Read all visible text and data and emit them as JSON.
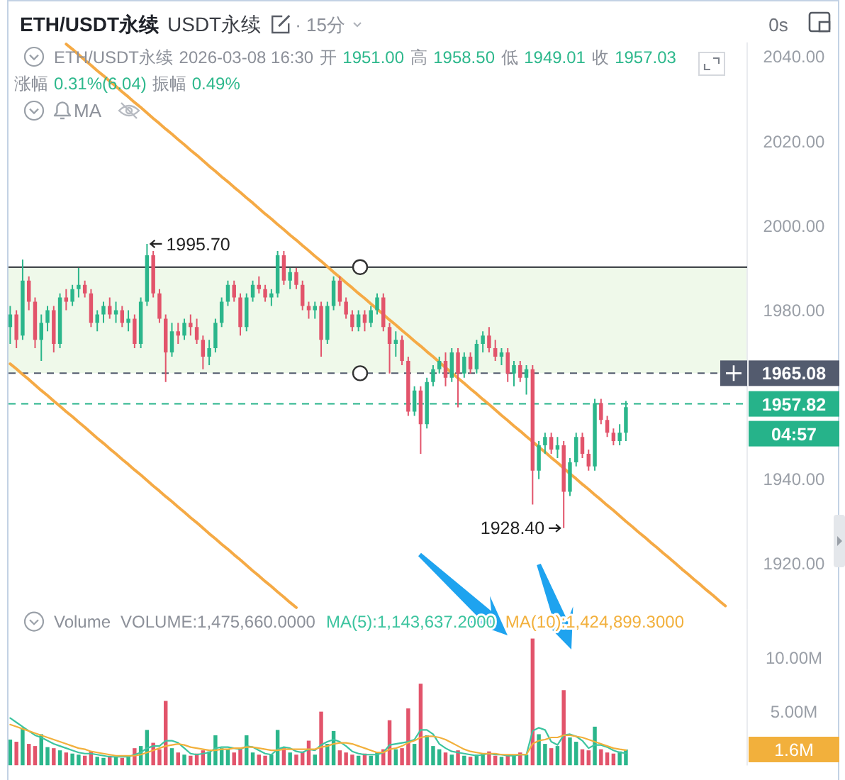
{
  "chart_data": [
    {
      "type": "candlestick",
      "title": "ETH/USDT永续",
      "subtitle": "USDT永续",
      "categories": [
        null,
        null,
        null,
        null,
        null,
        null,
        null,
        null,
        null,
        null,
        null,
        null,
        null,
        null,
        null,
        null,
        null,
        null,
        null,
        null,
        null,
        null,
        null,
        null,
        null,
        null,
        null,
        null,
        null,
        null,
        null,
        null,
        null,
        null,
        null,
        null,
        null,
        null,
        null,
        null,
        null,
        null,
        null,
        null,
        null,
        null,
        null,
        null,
        null,
        null,
        null,
        null,
        null,
        null,
        null,
        null,
        null,
        null,
        null,
        null,
        null,
        null,
        null,
        null,
        null,
        null,
        null,
        null,
        null,
        null,
        null,
        null,
        null,
        null,
        null,
        null,
        null,
        null,
        null,
        null,
        null,
        null,
        null,
        null,
        null,
        null,
        null,
        null,
        null,
        null,
        null,
        null,
        null,
        null,
        null,
        null,
        null,
        null,
        null,
        null,
        null,
        null,
        null,
        null,
        null,
        null,
        null,
        null,
        null,
        null,
        null,
        null,
        null,
        null,
        null,
        null,
        null,
        null,
        null
      ],
      "ohlc": [
        [
          1976,
          1981,
          1972,
          1979
        ],
        [
          1979,
          1980,
          1971,
          1973
        ],
        [
          1974,
          1992,
          1973,
          1987
        ],
        [
          1987,
          1988,
          1980,
          1982
        ],
        [
          1982,
          1983,
          1971,
          1973
        ],
        [
          1973,
          1979,
          1968,
          1977
        ],
        [
          1977,
          1981,
          1975,
          1980
        ],
        [
          1980,
          1981,
          1970,
          1972
        ],
        [
          1972,
          1984,
          1971,
          1983
        ],
        [
          1983,
          1985,
          1980,
          1982
        ],
        [
          1982,
          1986,
          1981,
          1985
        ],
        [
          1985,
          1990,
          1983,
          1986
        ],
        [
          1986,
          1987,
          1983,
          1984
        ],
        [
          1984,
          1985,
          1976,
          1977
        ],
        [
          1977,
          1980,
          1975,
          1979
        ],
        [
          1979,
          1982,
          1977,
          1981
        ],
        [
          1981,
          1983,
          1978,
          1979
        ],
        [
          1979,
          1982,
          1977,
          1980
        ],
        [
          1980,
          1981,
          1976,
          1977
        ],
        [
          1977,
          1980,
          1975,
          1978
        ],
        [
          1978,
          1979,
          1971,
          1972
        ],
        [
          1972,
          1983,
          1971,
          1982
        ],
        [
          1982,
          1995.7,
          1981,
          1993
        ],
        [
          1993,
          1994,
          1983,
          1984
        ],
        [
          1984,
          1985,
          1977,
          1978
        ],
        [
          1978,
          1979,
          1963,
          1970
        ],
        [
          1970,
          1977,
          1969,
          1975
        ],
        [
          1975,
          1977,
          1972,
          1974
        ],
        [
          1974,
          1978,
          1973,
          1977
        ],
        [
          1977,
          1979,
          1974,
          1976
        ],
        [
          1976,
          1978,
          1972,
          1973
        ],
        [
          1973,
          1974,
          1966,
          1969
        ],
        [
          1969,
          1973,
          1967,
          1971
        ],
        [
          1971,
          1978,
          1970,
          1977
        ],
        [
          1977,
          1983,
          1976,
          1982
        ],
        [
          1982,
          1987,
          1981,
          1986
        ],
        [
          1986,
          1987,
          1982,
          1983
        ],
        [
          1983,
          1984,
          1974,
          1976
        ],
        [
          1976,
          1984,
          1975,
          1983
        ],
        [
          1983,
          1987,
          1982,
          1986
        ],
        [
          1986,
          1988,
          1984,
          1985
        ],
        [
          1985,
          1986,
          1982,
          1983
        ],
        [
          1983,
          1985,
          1981,
          1984
        ],
        [
          1984,
          1994,
          1983,
          1993
        ],
        [
          1993,
          1994,
          1986,
          1987
        ],
        [
          1987,
          1990,
          1985,
          1989
        ],
        [
          1989,
          1990,
          1985,
          1986
        ],
        [
          1986,
          1987,
          1980,
          1981
        ],
        [
          1981,
          1982,
          1978,
          1980
        ],
        [
          1980,
          1982,
          1978,
          1981
        ],
        [
          1981,
          1982,
          1969,
          1973
        ],
        [
          1973,
          1982,
          1972,
          1981
        ],
        [
          1981,
          1988,
          1980,
          1987
        ],
        [
          1987,
          1988,
          1981,
          1982
        ],
        [
          1982,
          1983,
          1978,
          1979
        ],
        [
          1979,
          1980,
          1975,
          1976
        ],
        [
          1976,
          1980,
          1975,
          1979
        ],
        [
          1979,
          1980,
          1975,
          1977
        ],
        [
          1977,
          1981,
          1976,
          1980
        ],
        [
          1980,
          1984,
          1979,
          1983
        ],
        [
          1983,
          1984,
          1975,
          1976
        ],
        [
          1976,
          1977,
          1965,
          1972
        ],
        [
          1972,
          1975,
          1969,
          1973
        ],
        [
          1973,
          1974,
          1967,
          1968
        ],
        [
          1968,
          1969,
          1955,
          1956
        ],
        [
          1956,
          1962,
          1955,
          1961
        ],
        [
          1961,
          1962,
          1946,
          1953
        ],
        [
          1953,
          1964,
          1952,
          1963
        ],
        [
          1963,
          1967,
          1962,
          1966
        ],
        [
          1966,
          1969,
          1965,
          1968
        ],
        [
          1968,
          1970,
          1962,
          1964
        ],
        [
          1964,
          1971,
          1963,
          1970
        ],
        [
          1970,
          1971,
          1957,
          1965
        ],
        [
          1965,
          1970,
          1964,
          1969
        ],
        [
          1969,
          1970,
          1965,
          1966
        ],
        [
          1966,
          1973,
          1965,
          1972
        ],
        [
          1972,
          1975,
          1970,
          1974
        ],
        [
          1974,
          1976,
          1970,
          1971
        ],
        [
          1971,
          1973,
          1968,
          1969
        ],
        [
          1969,
          1971,
          1967,
          1970
        ],
        [
          1970,
          1971,
          1963,
          1965
        ],
        [
          1965,
          1968,
          1962,
          1967
        ],
        [
          1967,
          1968,
          1963,
          1964
        ],
        [
          1964,
          1967,
          1960,
          1966
        ],
        [
          1966,
          1967,
          1934,
          1942
        ],
        [
          1942,
          1949,
          1940,
          1948
        ],
        [
          1948,
          1951,
          1946,
          1950
        ],
        [
          1950,
          1951,
          1946,
          1947
        ],
        [
          1947,
          1950,
          1945,
          1948
        ],
        [
          1948,
          1949,
          1928.4,
          1937
        ],
        [
          1937,
          1945,
          1936,
          1944
        ],
        [
          1944,
          1951,
          1943,
          1950
        ],
        [
          1950,
          1951,
          1945,
          1946
        ],
        [
          1946,
          1947,
          1942,
          1943
        ],
        [
          1943,
          1959,
          1942,
          1958
        ],
        [
          1958,
          1959,
          1953,
          1954
        ],
        [
          1954,
          1955,
          1950,
          1951
        ],
        [
          1951,
          1952,
          1948,
          1949
        ],
        [
          1949,
          1953,
          1948,
          1951
        ],
        [
          1951,
          1958.5,
          1949.01,
          1957.03
        ],
        null,
        null,
        null,
        null,
        null,
        null,
        null,
        null,
        null,
        null,
        null,
        null,
        null,
        null,
        null,
        null,
        null,
        null,
        null
      ],
      "colors": [
        "#2bb68b",
        "#e2546b",
        "#2bb68b",
        "#e2546b",
        "#e2546b",
        "#2bb68b",
        "#2bb68b",
        "#e2546b",
        "#2bb68b",
        "#e2546b",
        "#2bb68b",
        "#2bb68b",
        "#e2546b",
        "#e2546b",
        "#2bb68b",
        "#2bb68b",
        "#e2546b",
        "#2bb68b",
        "#e2546b",
        "#2bb68b",
        "#e2546b",
        "#2bb68b",
        "#2bb68b",
        "#e2546b",
        "#e2546b",
        "#e2546b",
        "#2bb68b",
        "#e2546b",
        "#2bb68b",
        "#e2546b",
        "#e2546b",
        "#e2546b",
        "#2bb68b",
        "#2bb68b",
        "#2bb68b",
        "#2bb68b",
        "#e2546b",
        "#e2546b",
        "#2bb68b",
        "#2bb68b",
        "#e2546b",
        "#e2546b",
        "#2bb68b",
        "#2bb68b",
        "#e2546b",
        "#2bb68b",
        "#e2546b",
        "#e2546b",
        "#e2546b",
        "#2bb68b",
        "#e2546b",
        "#2bb68b",
        "#2bb68b",
        "#e2546b",
        "#e2546b",
        "#e2546b",
        "#2bb68b",
        "#e2546b",
        "#2bb68b",
        "#2bb68b",
        "#e2546b",
        "#e2546b",
        "#2bb68b",
        "#e2546b",
        "#e2546b",
        "#2bb68b",
        "#e2546b",
        "#2bb68b",
        "#2bb68b",
        "#2bb68b",
        "#e2546b",
        "#2bb68b",
        "#e2546b",
        "#2bb68b",
        "#e2546b",
        "#2bb68b",
        "#2bb68b",
        "#e2546b",
        "#e2546b",
        "#2bb68b",
        "#e2546b",
        "#2bb68b",
        "#e2546b",
        "#2bb68b",
        "#e2546b",
        "#2bb68b",
        "#2bb68b",
        "#e2546b",
        "#2bb68b",
        "#e2546b",
        "#2bb68b",
        "#2bb68b",
        "#e2546b",
        "#e2546b",
        "#2bb68b",
        "#e2546b",
        "#e2546b",
        "#e2546b",
        "#2bb68b",
        "#2bb68b",
        null,
        null,
        null,
        null,
        null,
        null,
        null,
        null,
        null,
        null,
        null,
        null,
        null,
        null,
        null,
        null,
        null,
        null,
        null
      ],
      "series": [
        {
          "type": "line",
          "color": "#f5aa45",
          "values": [
            null,
            null,
            null,
            null,
            null,
            null,
            null,
            null,
            null,
            2043.0,
            2041.8,
            2040.5,
            2039.2,
            2038.0,
            2036.7,
            2035.5,
            2034.2,
            2033.0,
            2031.7,
            2030.5,
            2029.2,
            2028.0,
            2026.7,
            2025.4,
            2024.2,
            2022.9,
            2021.7,
            2020.4,
            2019.2,
            2017.9,
            2016.7,
            2015.4,
            2014.1,
            2012.9,
            2011.6,
            2010.4,
            2009.1,
            2007.9,
            2006.6,
            2005.4,
            2004.1,
            2002.8,
            2001.6,
            2000.3,
            1999.1,
            1997.8,
            1996.6,
            1995.3,
            1994.1,
            1992.8,
            1991.6,
            1990.3,
            1989.0,
            1987.8,
            1986.5,
            1985.3,
            1984.0,
            1982.8,
            1981.5,
            1980.3,
            1979.0,
            1977.7,
            1976.5,
            1975.2,
            1974.0,
            1972.7,
            1971.5,
            1970.2,
            1969.0,
            1967.7,
            1966.4,
            1965.2,
            1963.9,
            1962.7,
            1961.4,
            1960.2,
            1958.9,
            1957.7,
            1956.4,
            1955.1,
            1953.9,
            1952.6,
            1951.4,
            1950.1,
            1948.9,
            1947.6,
            1946.4,
            1945.1,
            1943.9,
            1942.6,
            1941.3,
            1940.1,
            1938.8,
            1937.6,
            1936.3,
            1935.1,
            1933.8,
            1932.6,
            1931.3,
            1930.0,
            1928.8,
            1927.5,
            1926.3,
            1925.0,
            1923.8,
            1922.5,
            1921.3,
            1920.0,
            1918.7,
            1917.5,
            1916.2,
            1915.0,
            1913.7,
            1912.5,
            1911.2,
            1910.0,
            null,
            null,
            null
          ]
        },
        {
          "type": "line",
          "color": "#f5aa45",
          "values": [
            1967.3,
            1966.1,
            1964.8,
            1963.6,
            1962.3,
            1961.0,
            1959.8,
            1958.5,
            1957.3,
            1956.0,
            1954.8,
            1953.5,
            1952.3,
            1951.0,
            1949.7,
            1948.5,
            1947.2,
            1946.0,
            1944.7,
            1943.5,
            1942.2,
            1941.0,
            1939.7,
            1938.4,
            1937.2,
            1935.9,
            1934.7,
            1933.4,
            1932.2,
            1930.9,
            1929.7,
            1928.4,
            1927.1,
            1925.9,
            1924.6,
            1923.4,
            1922.1,
            1920.9,
            1919.6,
            1918.3,
            1917.1,
            1915.8,
            1914.6,
            1913.3,
            1912.1,
            1910.8,
            1909.6,
            null,
            null,
            null,
            null,
            null,
            null,
            null,
            null,
            null,
            null,
            null,
            null,
            null,
            null,
            null,
            null,
            null,
            null,
            null,
            null,
            null,
            null,
            null,
            null,
            null,
            null,
            null,
            null,
            null,
            null,
            null,
            null,
            null,
            null,
            null,
            null,
            null,
            null,
            null,
            null,
            null,
            null,
            null,
            null,
            null,
            null,
            null,
            null,
            null,
            null,
            null,
            null,
            null,
            null,
            null,
            null,
            null,
            null,
            null,
            null,
            null,
            null,
            null,
            null,
            null,
            null,
            null,
            null,
            null,
            null,
            null,
            null
          ]
        }
      ],
      "ylim": [
        1909.1,
        2043.4
      ],
      "yticks": [
        {
          "value": 1920,
          "label": "1920.00"
        },
        {
          "value": 1940,
          "label": "1940.00"
        },
        {
          "value": 1980,
          "label": "1980.00"
        },
        {
          "value": 2000,
          "label": "2000.00"
        },
        {
          "value": 2020,
          "label": "2020.00"
        },
        {
          "value": 2040,
          "label": "2040.00"
        }
      ],
      "tick_labels": "y",
      "ref_lines": [
        {
          "axis": "y",
          "value": 1990.2,
          "color": "#23262d",
          "line_style": "solid"
        },
        {
          "axis": "y",
          "value": 1965.08,
          "label": "1965.08",
          "color": "#535b6e",
          "line_style": "dashed"
        },
        {
          "axis": "y",
          "value": 1957.82,
          "label": "1957.82",
          "color": "#26b38a",
          "line_style": "dashed"
        }
      ],
      "bands": [
        {
          "axis": "y",
          "from": 1965.08,
          "to": 1990.2,
          "color": "#eff9ea"
        }
      ],
      "annotations": [
        "· 15分",
        "0s",
        "ETH/USDT永续",
        "2026-03-08 16:30",
        "开",
        "1951.00",
        "高",
        "1958.50",
        "低",
        "1949.01",
        "收",
        "1957.03",
        "涨幅",
        "0.31%(6.04)",
        "振幅",
        "0.49%",
        "MA",
        "1995.70",
        "1928.40",
        "04:57"
      ]
    },
    {
      "type": "bar",
      "title": "Volume",
      "categories": [
        null,
        null,
        null,
        null,
        null,
        null,
        null,
        null,
        null,
        null,
        null,
        null,
        null,
        null,
        null,
        null,
        null,
        null,
        null,
        null,
        null,
        null,
        null,
        null,
        null,
        null,
        null,
        null,
        null,
        null,
        null,
        null,
        null,
        null,
        null,
        null,
        null,
        null,
        null,
        null,
        null,
        null,
        null,
        null,
        null,
        null,
        null,
        null,
        null,
        null,
        null,
        null,
        null,
        null,
        null,
        null,
        null,
        null,
        null,
        null,
        null,
        null,
        null,
        null,
        null,
        null,
        null,
        null,
        null,
        null,
        null,
        null,
        null,
        null,
        null,
        null,
        null,
        null,
        null,
        null,
        null,
        null,
        null,
        null,
        null,
        null,
        null,
        null,
        null,
        null,
        null,
        null,
        null,
        null,
        null,
        null,
        null,
        null,
        null,
        null,
        null,
        null,
        null,
        null,
        null,
        null,
        null,
        null,
        null,
        null,
        null,
        null,
        null,
        null,
        null,
        null,
        null,
        null,
        null
      ],
      "series": [
        {
          "values": [
            2.4,
            2.2,
            3.5,
            2.0,
            1.8,
            2.9,
            1.7,
            1.6,
            1.4,
            1.2,
            1.1,
            1.0,
            0.9,
            1.3,
            0.8,
            0.7,
            0.9,
            0.8,
            0.7,
            0.9,
            1.6,
            1.8,
            3.3,
            2.1,
            1.5,
            6.0,
            1.6,
            1.2,
            1.0,
            0.9,
            1.1,
            1.4,
            1.3,
            2.8,
            1.6,
            1.5,
            1.2,
            1.6,
            2.8,
            1.2,
            1.0,
            0.9,
            1.0,
            3.3,
            1.6,
            1.2,
            1.0,
            1.3,
            2.3,
            1.0,
            5.0,
            2.0,
            3.2,
            1.4,
            1.2,
            1.0,
            0.9,
            1.1,
            0.9,
            1.2,
            1.5,
            4.2,
            1.5,
            1.6,
            5.3,
            2.0,
            7.6,
            2.8,
            1.8,
            1.5,
            1.2,
            1.0,
            1.4,
            0.9,
            0.8,
            1.0,
            1.1,
            1.3,
            0.9,
            0.8,
            1.0,
            0.9,
            1.2,
            1.0,
            11.8,
            2.9,
            2.0,
            1.6,
            1.8,
            7.0,
            2.6,
            2.2,
            1.5,
            1.4,
            3.6,
            1.5,
            1.2,
            1.1,
            1.3,
            1.48,
            null,
            null,
            null,
            null,
            null,
            null,
            null,
            null,
            null,
            null,
            null,
            null,
            null,
            null,
            null,
            null,
            null,
            null,
            null
          ],
          "colors": [
            "#2bb68b",
            "#e2546b",
            "#2bb68b",
            "#e2546b",
            "#e2546b",
            "#2bb68b",
            "#2bb68b",
            "#e2546b",
            "#2bb68b",
            "#e2546b",
            "#2bb68b",
            "#2bb68b",
            "#e2546b",
            "#e2546b",
            "#2bb68b",
            "#2bb68b",
            "#e2546b",
            "#2bb68b",
            "#e2546b",
            "#2bb68b",
            "#e2546b",
            "#2bb68b",
            "#2bb68b",
            "#e2546b",
            "#e2546b",
            "#e2546b",
            "#2bb68b",
            "#e2546b",
            "#2bb68b",
            "#e2546b",
            "#e2546b",
            "#e2546b",
            "#2bb68b",
            "#2bb68b",
            "#2bb68b",
            "#2bb68b",
            "#e2546b",
            "#e2546b",
            "#2bb68b",
            "#2bb68b",
            "#e2546b",
            "#e2546b",
            "#2bb68b",
            "#2bb68b",
            "#e2546b",
            "#2bb68b",
            "#e2546b",
            "#e2546b",
            "#e2546b",
            "#2bb68b",
            "#e2546b",
            "#2bb68b",
            "#2bb68b",
            "#e2546b",
            "#e2546b",
            "#e2546b",
            "#2bb68b",
            "#e2546b",
            "#2bb68b",
            "#2bb68b",
            "#e2546b",
            "#e2546b",
            "#2bb68b",
            "#e2546b",
            "#e2546b",
            "#2bb68b",
            "#e2546b",
            "#2bb68b",
            "#2bb68b",
            "#2bb68b",
            "#e2546b",
            "#2bb68b",
            "#e2546b",
            "#2bb68b",
            "#e2546b",
            "#2bb68b",
            "#2bb68b",
            "#e2546b",
            "#e2546b",
            "#2bb68b",
            "#e2546b",
            "#2bb68b",
            "#e2546b",
            "#2bb68b",
            "#e2546b",
            "#2bb68b",
            "#2bb68b",
            "#e2546b",
            "#2bb68b",
            "#e2546b",
            "#2bb68b",
            "#2bb68b",
            "#e2546b",
            "#e2546b",
            "#2bb68b",
            "#e2546b",
            "#e2546b",
            "#e2546b",
            "#2bb68b",
            "#2bb68b",
            null,
            null,
            null,
            null,
            null,
            null,
            null,
            null,
            null,
            null,
            null,
            null,
            null,
            null,
            null,
            null,
            null,
            null,
            null
          ]
        },
        {
          "name": "MA(5)",
          "type": "line",
          "color": "#3cc49f",
          "values": [
            4.4,
            4.0,
            3.6,
            3.2,
            2.8,
            2.6,
            2.3,
            2.0,
            1.8,
            1.6,
            1.4,
            1.2,
            1.1,
            1.1,
            1.0,
            0.9,
            0.8,
            0.8,
            0.8,
            0.8,
            1.0,
            1.2,
            1.6,
            1.8,
            1.8,
            2.3,
            2.3,
            2.1,
            1.6,
            1.1,
            1.0,
            1.1,
            1.2,
            1.6,
            1.7,
            1.7,
            1.6,
            1.5,
            1.8,
            1.7,
            1.4,
            1.1,
            1.0,
            1.5,
            1.7,
            1.6,
            1.3,
            1.2,
            1.5,
            1.4,
            1.9,
            2.2,
            2.4,
            2.2,
            1.8,
            1.3,
            1.1,
            1.0,
            1.0,
            1.0,
            1.2,
            1.9,
            2.0,
            2.1,
            2.2,
            2.4,
            3.3,
            3.3,
            2.9,
            2.0,
            1.6,
            1.3,
            1.2,
            1.1,
            1.0,
            0.9,
            1.0,
            1.1,
            1.0,
            1.0,
            0.9,
            0.9,
            1.0,
            1.0,
            3.2,
            3.5,
            3.3,
            2.2,
            1.9,
            2.8,
            2.9,
            2.7,
            2.3,
            1.6,
            1.9,
            1.9,
            1.7,
            1.4,
            1.2,
            1.14,
            null,
            null,
            null,
            null,
            null,
            null,
            null,
            null,
            null,
            null,
            null,
            null,
            null,
            null,
            null,
            null,
            null,
            null,
            null
          ]
        },
        {
          "name": "MA(10)",
          "type": "line",
          "color": "#f2b03c",
          "values": [
            3.8,
            3.6,
            3.4,
            3.2,
            3.0,
            2.8,
            2.6,
            2.4,
            2.2,
            2.0,
            1.8,
            1.6,
            1.5,
            1.3,
            1.2,
            1.1,
            1.0,
            0.9,
            0.9,
            0.9,
            0.9,
            1.0,
            1.2,
            1.4,
            1.6,
            1.8,
            1.9,
            2.0,
            1.9,
            1.7,
            1.6,
            1.5,
            1.4,
            1.4,
            1.5,
            1.5,
            1.6,
            1.6,
            1.7,
            1.7,
            1.6,
            1.5,
            1.4,
            1.4,
            1.5,
            1.5,
            1.5,
            1.5,
            1.5,
            1.5,
            1.7,
            1.8,
            2.0,
            2.1,
            2.1,
            2.0,
            1.8,
            1.6,
            1.4,
            1.2,
            1.2,
            1.5,
            1.6,
            1.8,
            2.1,
            2.3,
            2.6,
            2.7,
            2.7,
            2.6,
            2.4,
            2.1,
            1.8,
            1.5,
            1.3,
            1.2,
            1.1,
            1.1,
            1.1,
            1.0,
            1.0,
            1.0,
            1.0,
            1.0,
            2.0,
            2.3,
            2.4,
            2.6,
            2.6,
            2.8,
            2.8,
            2.7,
            2.6,
            2.4,
            2.2,
            2.0,
            1.8,
            1.6,
            1.5,
            1.42,
            null,
            null,
            null,
            null,
            null,
            null,
            null,
            null,
            null,
            null,
            null,
            null,
            null,
            null,
            null,
            null,
            null,
            null,
            null
          ]
        }
      ],
      "ylim": [
        0,
        14.5
      ],
      "yticks": [
        {
          "value": 5,
          "label": "5.00M"
        },
        {
          "value": 10,
          "label": "10.00M"
        }
      ],
      "tick_labels": "y",
      "legend": "top right",
      "annotations": [
        "VOLUME:1,475,660.0000",
        ":1,143,637.2000",
        ":1,424,899.3000",
        "1.6M"
      ]
    }
  ]
}
